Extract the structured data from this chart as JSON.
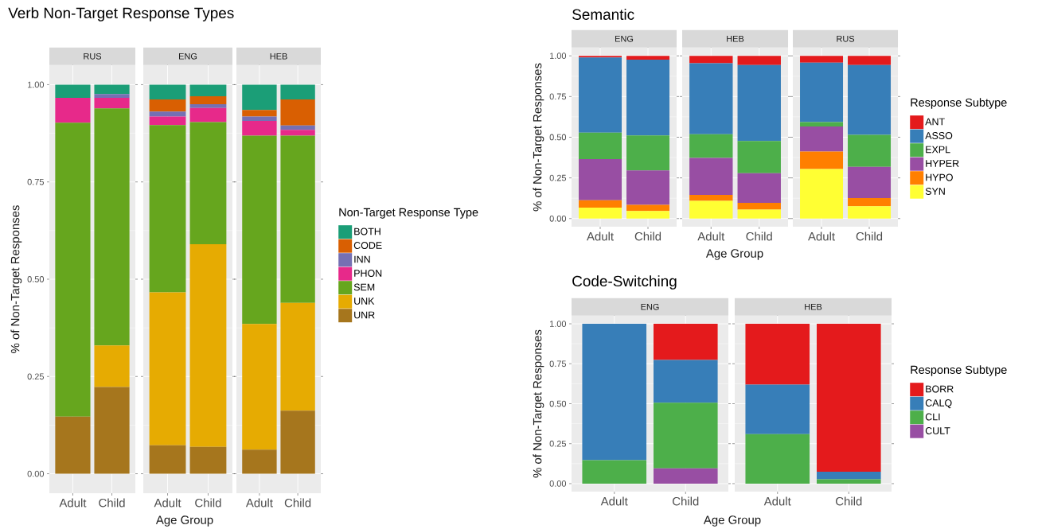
{
  "chart_data": [
    {
      "type": "bar",
      "stacked": true,
      "title": "Verb Non-Target Response Types",
      "subtitle": "RUS",
      "ylabel": "% of Non-Target Responses",
      "categories": [
        "Adult",
        "Child"
      ],
      "ylim": [
        -0.05,
        1.05
      ],
      "yticks": [
        {
          "value": 0,
          "label": "0.00"
        },
        {
          "value": 0.25,
          "label": "0.25"
        },
        {
          "value": 0.5,
          "label": "0.50"
        },
        {
          "value": 0.75,
          "label": "0.75"
        },
        {
          "value": 1,
          "label": "1.00"
        }
      ],
      "grid": true,
      "series": [
        {
          "color": "#a6761d",
          "values": [
            0.147,
            0.223
          ]
        },
        {
          "color": "#e6ab02",
          "values": [
            0,
            0.107
          ]
        },
        {
          "color": "#66a61e",
          "values": [
            0.755,
            0.609
          ]
        },
        {
          "color": "#e7298a",
          "values": [
            0.064,
            0.027
          ]
        },
        {
          "color": "#7570b3",
          "values": [
            0,
            0.01
          ]
        },
        {
          "color": "#d95f02",
          "values": [
            0,
            0
          ]
        },
        {
          "color": "#1b9e77",
          "values": [
            0.034,
            0.024
          ]
        }
      ]
    },
    {
      "type": "bar",
      "stacked": true,
      "subtitle": "ENG",
      "xlabel": "Age Group",
      "categories": [
        "Adult",
        "Child"
      ],
      "ylim": [
        -0.05,
        1.05
      ],
      "yticks": [
        0,
        0.25,
        0.5,
        0.75,
        1
      ],
      "grid": true,
      "tick_labels": "x",
      "series": [
        {
          "color": "#a6761d",
          "values": [
            0.073,
            0.069
          ]
        },
        {
          "color": "#e6ab02",
          "values": [
            0.393,
            0.521
          ]
        },
        {
          "color": "#66a61e",
          "values": [
            0.43,
            0.314
          ]
        },
        {
          "color": "#e7298a",
          "values": [
            0.022,
            0.036
          ]
        },
        {
          "color": "#7570b3",
          "values": [
            0.013,
            0.01
          ]
        },
        {
          "color": "#d95f02",
          "values": [
            0.031,
            0.02
          ]
        },
        {
          "color": "#1b9e77",
          "values": [
            0.038,
            0.03
          ]
        }
      ]
    },
    {
      "type": "bar",
      "stacked": true,
      "subtitle": "HEB",
      "legend_title": "Non-Target Response Type",
      "legend": "right",
      "categories": [
        "Adult",
        "Child"
      ],
      "ylim": [
        -0.05,
        1.05
      ],
      "yticks": [
        0,
        0.25,
        0.5,
        0.75,
        1
      ],
      "grid": true,
      "tick_labels": "x",
      "series": [
        {
          "name": "UNR",
          "color": "#a6761d",
          "values": [
            0.062,
            0.162
          ]
        },
        {
          "name": "UNK",
          "color": "#e6ab02",
          "values": [
            0.323,
            0.277
          ]
        },
        {
          "name": "SEM",
          "color": "#66a61e",
          "values": [
            0.484,
            0.43
          ]
        },
        {
          "name": "PHON",
          "color": "#e7298a",
          "values": [
            0.038,
            0.015
          ]
        },
        {
          "name": "INN",
          "color": "#7570b3",
          "values": [
            0.011,
            0.011
          ]
        },
        {
          "name": "CODE",
          "color": "#d95f02",
          "values": [
            0.017,
            0.067
          ]
        },
        {
          "name": "BOTH",
          "color": "#1b9e77",
          "values": [
            0.065,
            0.038
          ]
        }
      ]
    },
    {
      "type": "bar",
      "stacked": true,
      "title": "Semantic",
      "subtitle": "ENG",
      "ylabel": "% of Non-Target Responses",
      "categories": [
        "Adult",
        "Child"
      ],
      "ylim": [
        -0.05,
        1.05
      ],
      "yticks": [
        {
          "value": 0,
          "label": "0.00"
        },
        {
          "value": 0.25,
          "label": "0.25"
        },
        {
          "value": 0.5,
          "label": "0.50"
        },
        {
          "value": 0.75,
          "label": "0.75"
        },
        {
          "value": 1,
          "label": "1.00"
        }
      ],
      "grid": true,
      "series": [
        {
          "color": "#ffff33",
          "values": [
            0.067,
            0.047
          ]
        },
        {
          "color": "#ff7f00",
          "values": [
            0.046,
            0.037
          ]
        },
        {
          "color": "#984ea3",
          "values": [
            0.253,
            0.212
          ]
        },
        {
          "color": "#4daf4a",
          "values": [
            0.162,
            0.215
          ]
        },
        {
          "color": "#377eb8",
          "values": [
            0.462,
            0.465
          ]
        },
        {
          "color": "#e41a1c",
          "values": [
            0.01,
            0.024
          ]
        }
      ]
    },
    {
      "type": "bar",
      "stacked": true,
      "subtitle": "HEB",
      "xlabel": "Age Group",
      "categories": [
        "Adult",
        "Child"
      ],
      "ylim": [
        -0.05,
        1.05
      ],
      "yticks": [
        0,
        0.25,
        0.5,
        0.75,
        1
      ],
      "grid": true,
      "tick_labels": "x",
      "series": [
        {
          "color": "#ffff33",
          "values": [
            0.109,
            0.055
          ]
        },
        {
          "color": "#ff7f00",
          "values": [
            0.037,
            0.041
          ]
        },
        {
          "color": "#984ea3",
          "values": [
            0.227,
            0.183
          ]
        },
        {
          "color": "#4daf4a",
          "values": [
            0.145,
            0.198
          ]
        },
        {
          "color": "#377eb8",
          "values": [
            0.437,
            0.466
          ]
        },
        {
          "color": "#e41a1c",
          "values": [
            0.045,
            0.057
          ]
        }
      ]
    },
    {
      "type": "bar",
      "stacked": true,
      "subtitle": "RUS",
      "legend_title": "Response Subtype",
      "legend": "right",
      "categories": [
        "Adult",
        "Child"
      ],
      "ylim": [
        -0.05,
        1.05
      ],
      "yticks": [
        0,
        0.25,
        0.5,
        0.75,
        1
      ],
      "grid": true,
      "tick_labels": "x",
      "series": [
        {
          "name": "SYN",
          "color": "#ffff33",
          "values": [
            0.304,
            0.076
          ]
        },
        {
          "name": "HYPO",
          "color": "#ff7f00",
          "values": [
            0.108,
            0.05
          ]
        },
        {
          "name": "HYPER",
          "color": "#984ea3",
          "values": [
            0.154,
            0.192
          ]
        },
        {
          "name": "EXPL",
          "color": "#4daf4a",
          "values": [
            0.027,
            0.197
          ]
        },
        {
          "name": "ASSO",
          "color": "#377eb8",
          "values": [
            0.365,
            0.429
          ]
        },
        {
          "name": "ANT",
          "color": "#e41a1c",
          "values": [
            0.042,
            0.056
          ]
        }
      ]
    },
    {
      "type": "bar",
      "stacked": true,
      "title": "Code-Switching",
      "subtitle": "ENG",
      "ylabel": "% of Non-Target Responses",
      "xlabel": "Age Group",
      "categories": [
        "Adult",
        "Child"
      ],
      "ylim": [
        -0.05,
        1.05
      ],
      "yticks": [
        {
          "value": 0,
          "label": "0.00"
        },
        {
          "value": 0.25,
          "label": "0.25"
        },
        {
          "value": 0.5,
          "label": "0.50"
        },
        {
          "value": 0.75,
          "label": "0.75"
        },
        {
          "value": 1,
          "label": "1.00"
        }
      ],
      "grid": true,
      "series": [
        {
          "color": "#984ea3",
          "values": [
            0,
            0.095
          ]
        },
        {
          "color": "#4daf4a",
          "values": [
            0.146,
            0.411
          ]
        },
        {
          "color": "#377eb8",
          "values": [
            0.854,
            0.268
          ]
        },
        {
          "color": "#e41a1c",
          "values": [
            0,
            0.226
          ]
        }
      ]
    },
    {
      "type": "bar",
      "stacked": true,
      "subtitle": "HEB",
      "legend_title": "Response Subtype",
      "legend": "right",
      "categories": [
        "Adult",
        "Child"
      ],
      "ylim": [
        -0.05,
        1.05
      ],
      "yticks": [
        0,
        0.25,
        0.5,
        0.75,
        1
      ],
      "grid": true,
      "tick_labels": "x",
      "series": [
        {
          "name": "CULT",
          "color": "#984ea3",
          "values": [
            0,
            0
          ]
        },
        {
          "name": "CLI",
          "color": "#4daf4a",
          "values": [
            0.31,
            0.027
          ]
        },
        {
          "name": "CALQ",
          "color": "#377eb8",
          "values": [
            0.31,
            0.048
          ]
        },
        {
          "name": "BORR",
          "color": "#e41a1c",
          "values": [
            0.38,
            0.925
          ]
        }
      ]
    }
  ]
}
